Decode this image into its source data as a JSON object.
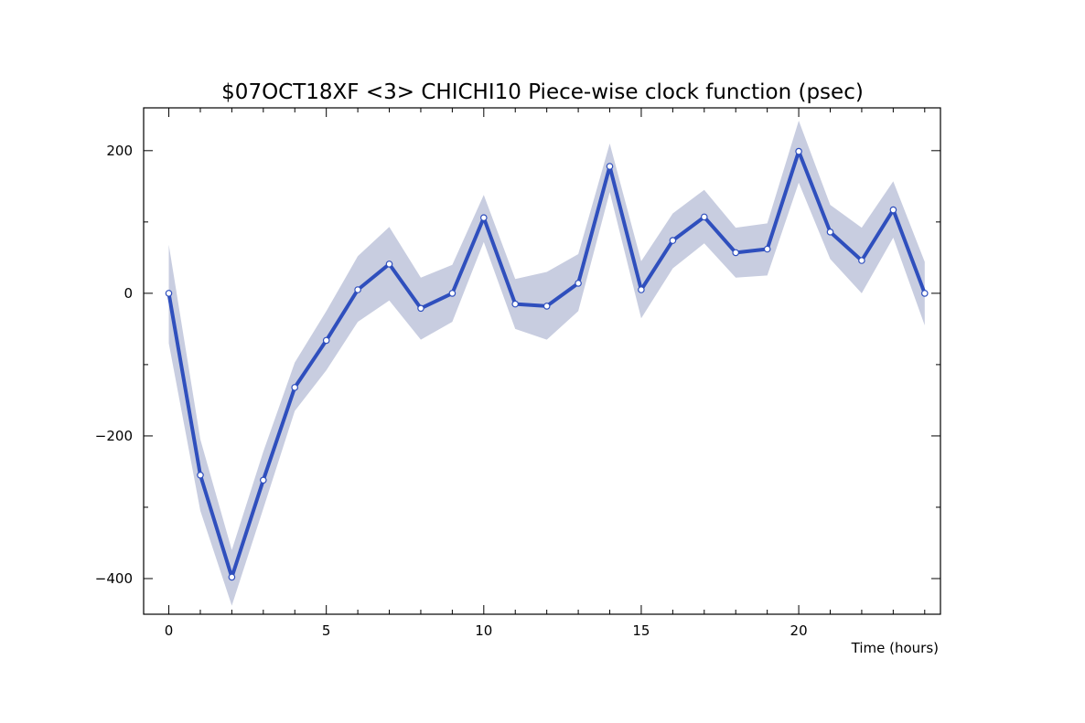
{
  "chart_data": {
    "type": "line",
    "title": "$07OCT18XF <3>  CHICHI10  Piece-wise clock function (psec)",
    "xlabel": "Time (hours)",
    "ylabel": "",
    "xlim": [
      -0.8,
      24.5
    ],
    "ylim": [
      -450,
      260
    ],
    "x_ticks": [
      0,
      5,
      10,
      15,
      20
    ],
    "x_tick_labels": [
      "0",
      "5",
      "10",
      "15",
      "20"
    ],
    "y_ticks": [
      -400,
      -200,
      0,
      200
    ],
    "y_tick_labels": [
      "−400",
      "−200",
      "0",
      "200"
    ],
    "grid": false,
    "legend": "none",
    "series": [
      {
        "x": [
          0,
          1,
          2,
          3,
          4,
          5,
          6,
          7,
          8,
          9,
          10,
          11,
          12,
          13,
          14,
          15,
          16,
          17,
          18,
          19,
          20,
          21,
          22,
          23,
          24
        ],
        "values": [
          0,
          -255,
          -398,
          -262,
          -132,
          -66,
          5,
          41,
          -21,
          0,
          106,
          -15,
          -18,
          14,
          178,
          5,
          74,
          107,
          57,
          62,
          199,
          86,
          46,
          117,
          0
        ],
        "band_upper": [
          68,
          -205,
          -360,
          -222,
          -97,
          -25,
          52,
          93,
          22,
          40,
          138,
          20,
          30,
          55,
          210,
          45,
          112,
          145,
          92,
          98,
          242,
          124,
          92,
          157,
          44
        ],
        "band_lower": [
          -70,
          -305,
          -438,
          -302,
          -165,
          -108,
          -40,
          -10,
          -65,
          -40,
          72,
          -50,
          -65,
          -25,
          142,
          -35,
          35,
          70,
          22,
          25,
          155,
          48,
          0,
          78,
          -45
        ]
      }
    ],
    "colors": {
      "line": "#2f4fbd",
      "band": "#c8cde0",
      "marker_fill": "#ffffff",
      "axis": "#000000"
    }
  }
}
